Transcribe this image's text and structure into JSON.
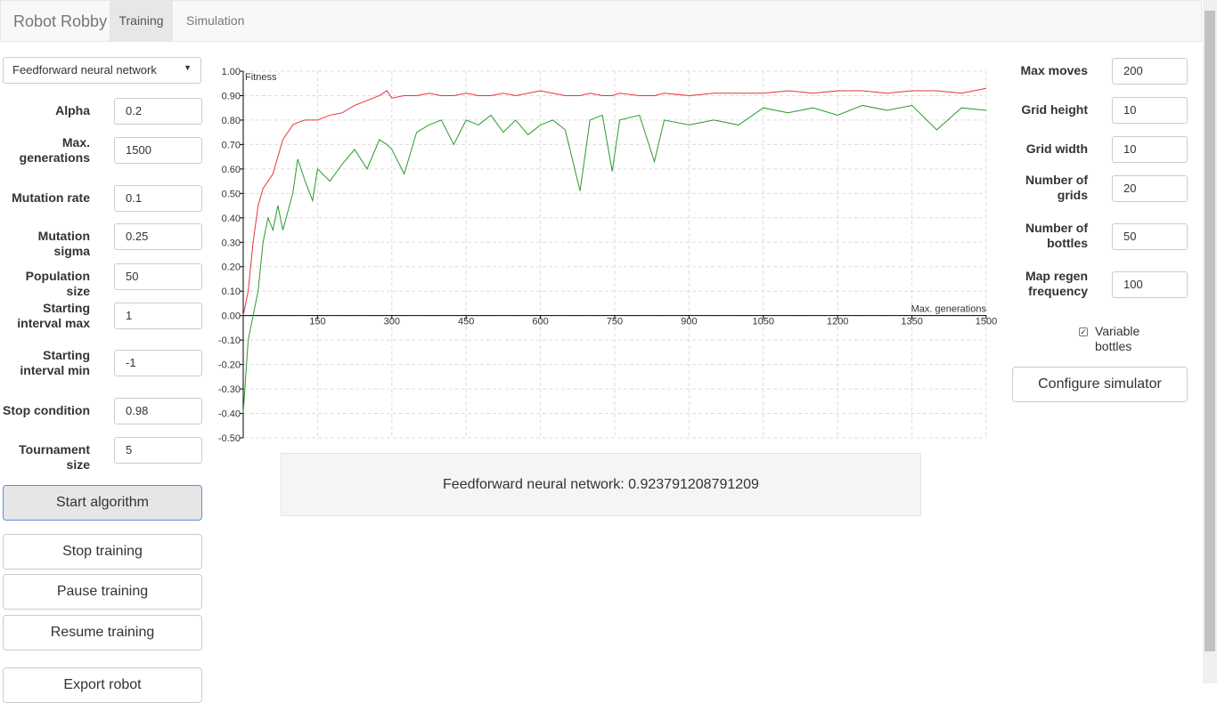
{
  "nav": {
    "brand": "Robot Robby",
    "tabs": [
      "Training",
      "Simulation"
    ]
  },
  "left": {
    "select": "Feedforward neural network",
    "fields": [
      {
        "label": "Alpha",
        "value": "0.2"
      },
      {
        "label": "Max. generations",
        "value": "1500"
      },
      {
        "label": "Mutation rate",
        "value": "0.1"
      },
      {
        "label": "Mutation sigma",
        "value": "0.25"
      },
      {
        "label": "Population size",
        "value": "50"
      },
      {
        "label": "Starting interval max",
        "value": "1"
      },
      {
        "label": "Starting interval min",
        "value": "-1"
      },
      {
        "label": "Stop condition",
        "value": "0.98"
      },
      {
        "label": "Tournament size",
        "value": "5"
      }
    ],
    "buttons": [
      "Start algorithm",
      "Stop training",
      "Pause training",
      "Resume training",
      "Export robot"
    ]
  },
  "right": {
    "fields": [
      {
        "label": "Max moves",
        "value": "200"
      },
      {
        "label": "Grid height",
        "value": "10"
      },
      {
        "label": "Grid width",
        "value": "10"
      },
      {
        "label": "Number of grids",
        "value": "20"
      },
      {
        "label": "Number of bottles",
        "value": "50"
      },
      {
        "label": "Map regen frequency",
        "value": "100"
      }
    ],
    "checkbox": "Variable bottles",
    "button": "Configure simulator"
  },
  "result": "Feedforward neural network: 0.923791208791209",
  "chart_data": {
    "type": "line",
    "y_label": "Fitness",
    "x_label": "Max. generations",
    "grid": true,
    "xlim": [
      0,
      1500
    ],
    "xticks": [
      150,
      300,
      450,
      600,
      750,
      900,
      1050,
      1200,
      1350,
      1500
    ],
    "ylim": [
      -0.5,
      1
    ],
    "yticks": [
      {
        "value": 1,
        "label": "1.00"
      },
      {
        "value": 0.9,
        "label": "0.90"
      },
      {
        "value": 0.8,
        "label": "0.80"
      },
      {
        "value": 0.7,
        "label": "0.70"
      },
      {
        "value": 0.6,
        "label": "0.60"
      },
      {
        "value": 0.5,
        "label": "0.50"
      },
      {
        "value": 0.4,
        "label": "0.40"
      },
      {
        "value": 0.3,
        "label": "0.30"
      },
      {
        "value": 0.2,
        "label": "0.20"
      },
      {
        "value": 0.1,
        "label": "0.10"
      },
      {
        "value": 0,
        "label": "0.00"
      },
      {
        "value": -0.1,
        "label": "-0.10"
      },
      {
        "value": -0.2,
        "label": "-0.20"
      },
      {
        "value": -0.3,
        "label": "-0.30"
      },
      {
        "value": -0.4,
        "label": "-0.40"
      },
      {
        "value": -0.5,
        "label": "-0.50"
      }
    ],
    "x": [
      0,
      10,
      20,
      30,
      40,
      50,
      60,
      70,
      80,
      100,
      110,
      125,
      140,
      150,
      175,
      200,
      225,
      250,
      275,
      290,
      300,
      325,
      350,
      375,
      400,
      425,
      450,
      475,
      500,
      525,
      550,
      575,
      600,
      625,
      650,
      680,
      700,
      725,
      745,
      760,
      800,
      830,
      850,
      900,
      950,
      1000,
      1050,
      1100,
      1150,
      1200,
      1250,
      1300,
      1350,
      1400,
      1450,
      1500
    ],
    "series": [
      {
        "color": "#e8323c",
        "values": [
          0,
          0.1,
          0.3,
          0.45,
          0.52,
          0.55,
          0.58,
          0.65,
          0.72,
          0.78,
          0.79,
          0.8,
          0.8,
          0.8,
          0.82,
          0.83,
          0.86,
          0.88,
          0.9,
          0.92,
          0.89,
          0.9,
          0.9,
          0.91,
          0.9,
          0.9,
          0.91,
          0.9,
          0.9,
          0.91,
          0.9,
          0.91,
          0.92,
          0.91,
          0.9,
          0.9,
          0.91,
          0.9,
          0.9,
          0.91,
          0.9,
          0.9,
          0.91,
          0.9,
          0.91,
          0.91,
          0.91,
          0.92,
          0.91,
          0.92,
          0.92,
          0.91,
          0.92,
          0.92,
          0.91,
          0.93
        ]
      },
      {
        "color": "#2a9a2a",
        "values": [
          -0.4,
          -0.1,
          0,
          0.1,
          0.3,
          0.4,
          0.35,
          0.45,
          0.35,
          0.5,
          0.64,
          0.55,
          0.47,
          0.6,
          0.55,
          0.62,
          0.68,
          0.6,
          0.72,
          0.7,
          0.68,
          0.58,
          0.75,
          0.78,
          0.8,
          0.7,
          0.8,
          0.78,
          0.82,
          0.75,
          0.8,
          0.74,
          0.78,
          0.8,
          0.76,
          0.51,
          0.8,
          0.82,
          0.59,
          0.8,
          0.82,
          0.63,
          0.8,
          0.78,
          0.8,
          0.78,
          0.85,
          0.83,
          0.85,
          0.82,
          0.86,
          0.84,
          0.86,
          0.76,
          0.85,
          0.84
        ]
      }
    ]
  }
}
